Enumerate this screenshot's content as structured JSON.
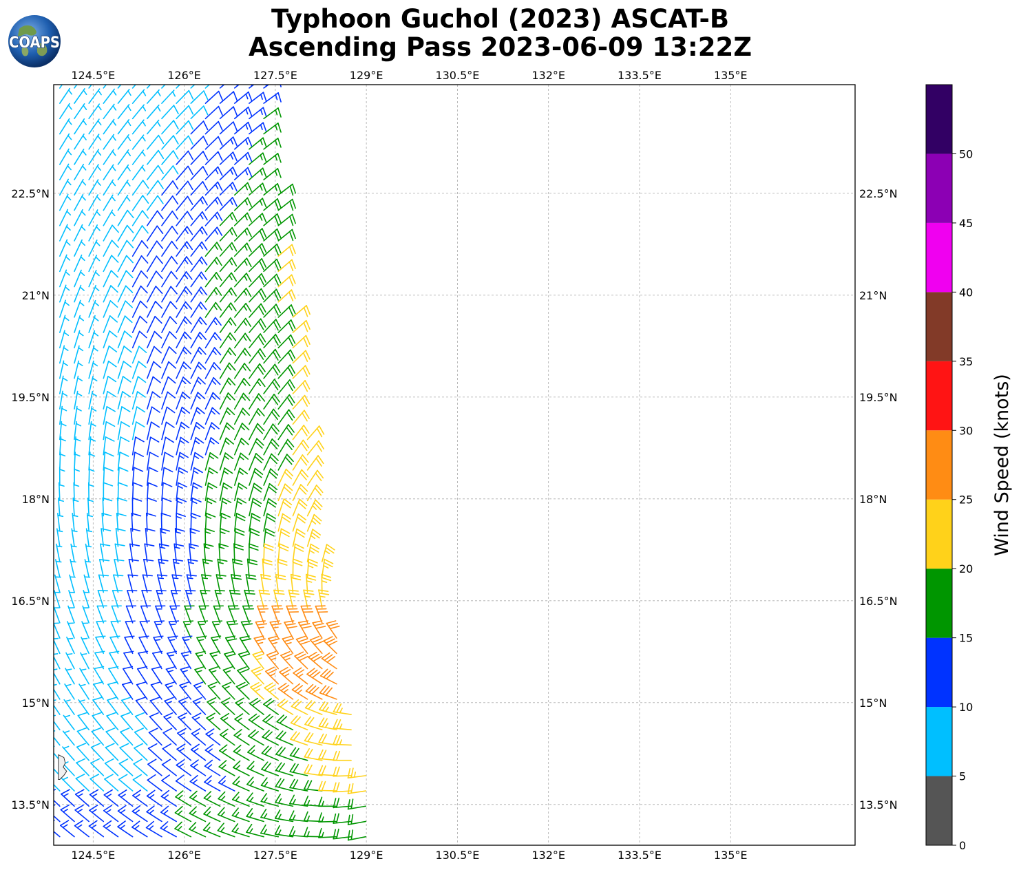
{
  "title_line1": "Typhoon Guchol (2023) ASCAT-B",
  "title_line2": "Ascending Pass 2023-06-09 13:22Z",
  "logo_text": "COAPS",
  "map": {
    "lon_range": [
      123.85,
      137.05
    ],
    "lat_range": [
      12.9,
      24.1
    ],
    "lon_ticks": [
      "124.5°E",
      "126°E",
      "127.5°E",
      "129°E",
      "130.5°E",
      "132°E",
      "133.5°E",
      "135°E"
    ],
    "lon_tick_values": [
      124.5,
      126,
      127.5,
      129,
      130.5,
      132,
      133.5,
      135
    ],
    "lat_ticks": [
      "22.5°N",
      "21°N",
      "19.5°N",
      "18°N",
      "16.5°N",
      "15°N",
      "13.5°N"
    ],
    "lat_tick_values": [
      22.5,
      21,
      19.5,
      18,
      16.5,
      15,
      13.5
    ],
    "grid": true,
    "coastline": "small island near 124.0°E 14.0°N"
  },
  "colorbar": {
    "label": "Wind Speed (knots)",
    "tick_labels": [
      "0",
      "5",
      "10",
      "15",
      "20",
      "25",
      "30",
      "35",
      "40",
      "45",
      "50"
    ],
    "bounds": [
      0,
      5,
      10,
      15,
      20,
      25,
      30,
      35,
      40,
      45,
      50,
      55
    ],
    "colors": [
      "#555555",
      "#00bfff",
      "#0033ff",
      "#009600",
      "#ffd21a",
      "#ff8c14",
      "#ff1414",
      "#823a28",
      "#f000f0",
      "#8c00b4",
      "#320064"
    ]
  },
  "chart_data": {
    "type": "wind_barbs",
    "swath": {
      "note": "ASCAT-B ascending pass swath; wind barbs colored by speed",
      "zones": [
        {
          "name": "light (5-10 kt)",
          "region": "NW and SW edges",
          "speed_kt": 8
        },
        {
          "name": "moderate (10-15 kt)",
          "region": "western swath",
          "speed_kt": 12
        },
        {
          "name": "fresh (15-20 kt)",
          "region": "central swath",
          "speed_kt": 17
        },
        {
          "name": "strong (20-25 kt)",
          "region": "eastern swath 15-19.5N",
          "speed_kt": 22
        },
        {
          "name": "strongest (25-30 kt)",
          "region": "near 127.5-128E, 15-16N",
          "speed_kt": 27
        }
      ]
    }
  }
}
